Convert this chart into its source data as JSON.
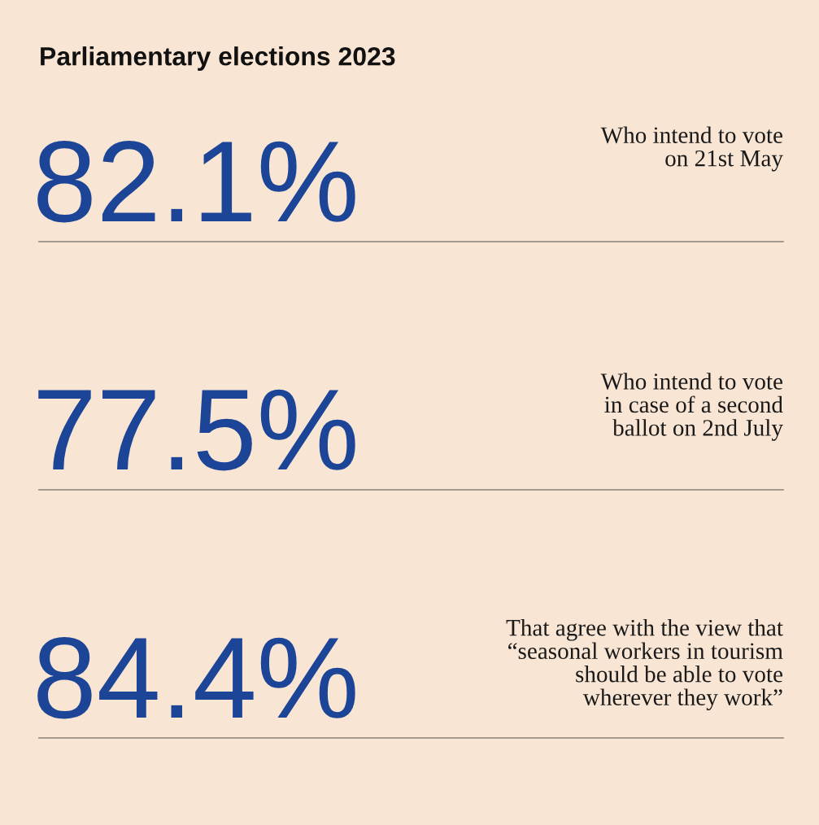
{
  "chart_data": {
    "type": "other",
    "title": "Parliamentary elections 2023",
    "categories": [
      "Who intend to vote\non 21st May",
      "Who intend to vote\nin case of a second\nballot on 2nd July",
      "That agree with the view that\n“seasonal workers in tourism\nshould be able to vote\nwherever they work”"
    ],
    "values": [
      82.1,
      77.5,
      84.4
    ],
    "value_labels": [
      "82.1%",
      "77.5%",
      "84.4%"
    ],
    "color": "#1c4597"
  }
}
